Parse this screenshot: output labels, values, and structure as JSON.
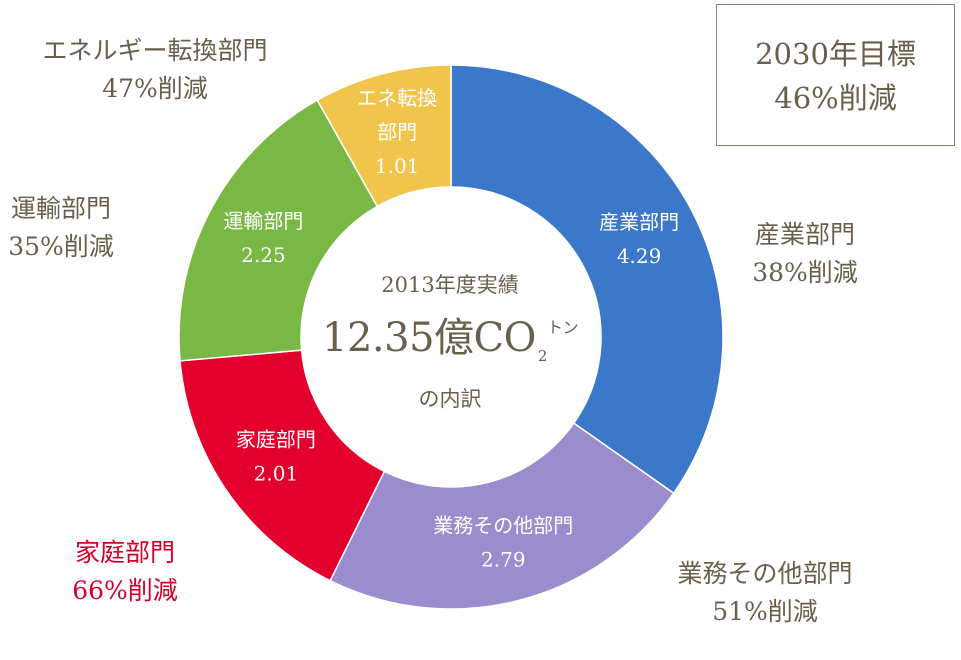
{
  "chart_data": {
    "type": "pie",
    "donut": true,
    "categories": [
      "産業部門",
      "業務その他部門",
      "家庭部門",
      "運輸部門",
      "エネ転換部門"
    ],
    "values": [
      4.29,
      2.79,
      2.01,
      2.25,
      1.01
    ],
    "slice_labels": [
      {
        "name": "産業部門",
        "value": "4.29"
      },
      {
        "name": "業務その他部門",
        "value": "2.79"
      },
      {
        "name": "家庭部門",
        "value": "2.01"
      },
      {
        "name": "運輸部門",
        "value": "2.25"
      },
      {
        "name_line1": "エネ転換",
        "name_line2": "部門",
        "value": "1.01"
      }
    ],
    "colors": [
      "#3b78c9",
      "#9b8ccd",
      "#e3002d",
      "#79b844",
      "#f1c54c"
    ],
    "center": {
      "line1": "2013年度実績",
      "main_number": "12.35億",
      "main_unit_base": "CO",
      "main_unit_sub": "2",
      "main_unit_suffix": "トン",
      "line3": "の内訳"
    }
  },
  "outer_labels": {
    "industry": {
      "name": "産業部門",
      "reduction": "38%削減",
      "color": "#6b5f4c"
    },
    "business": {
      "name": "業務その他部門",
      "reduction": "51%削減",
      "color": "#6b5f4c"
    },
    "household": {
      "name": "家庭部門",
      "reduction": "66%削減",
      "color": "#d4002a"
    },
    "transport": {
      "name": "運輸部門",
      "reduction": "35%削減",
      "color": "#6b5f4c"
    },
    "energy": {
      "name": "エネルギー転換部門",
      "reduction": "47%削減",
      "color": "#6b5f4c"
    }
  },
  "goal": {
    "line1": "2030年目標",
    "line2": "46%削減"
  }
}
